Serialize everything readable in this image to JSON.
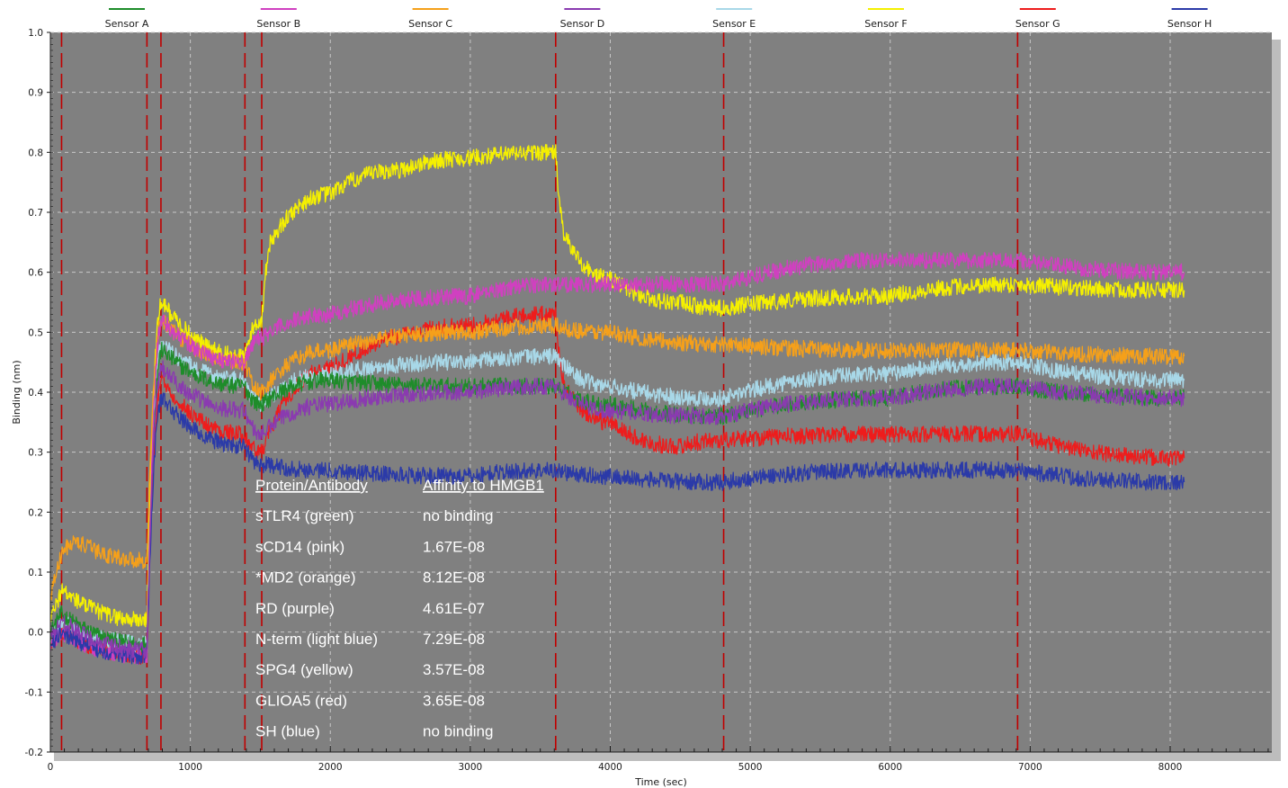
{
  "chart_data": {
    "type": "line",
    "title": "",
    "xlabel": "Time (sec)",
    "ylabel": "Binding (nm)",
    "xlim": [
      0,
      8800
    ],
    "ylim": [
      -0.2,
      1.0
    ],
    "x_ticks": [
      0,
      1000,
      2000,
      3000,
      4000,
      5000,
      6000,
      7000,
      8000
    ],
    "y_ticks": [
      -0.2,
      -0.1,
      0.0,
      0.1,
      0.2,
      0.3,
      0.4,
      0.5,
      0.6,
      0.7,
      0.8,
      0.9,
      1.0
    ],
    "grid": true,
    "legend_position": "top",
    "background": "#808080",
    "step_markers": [
      80,
      690,
      790,
      1390,
      1510,
      3610,
      4810,
      6910
    ],
    "marker_color": "#c00000",
    "series": [
      {
        "name": "Sensor A",
        "color": "#1e8c2a",
        "x": [
          0,
          80,
          690,
          800,
          1390,
          1510,
          2000,
          3000,
          3610,
          4000,
          4810,
          6000,
          6910,
          8100
        ],
        "y": [
          0.0,
          0.03,
          -0.02,
          0.47,
          0.41,
          0.38,
          0.42,
          0.41,
          0.41,
          0.38,
          0.36,
          0.39,
          0.41,
          0.39
        ]
      },
      {
        "name": "Sensor B",
        "color": "#d040c0",
        "x": [
          0,
          80,
          690,
          800,
          1390,
          1510,
          2000,
          3000,
          3610,
          4000,
          4810,
          6000,
          6910,
          8100
        ],
        "y": [
          -0.02,
          0.0,
          -0.04,
          0.52,
          0.45,
          0.49,
          0.53,
          0.56,
          0.58,
          0.58,
          0.58,
          0.62,
          0.62,
          0.6
        ]
      },
      {
        "name": "Sensor C",
        "color": "#f5a01a",
        "x": [
          0,
          80,
          200,
          690,
          800,
          1390,
          1510,
          2000,
          3000,
          3610,
          4000,
          4810,
          6000,
          6910,
          8100
        ],
        "y": [
          0.06,
          0.13,
          0.15,
          0.12,
          0.52,
          0.45,
          0.4,
          0.47,
          0.5,
          0.51,
          0.5,
          0.48,
          0.47,
          0.47,
          0.46
        ]
      },
      {
        "name": "Sensor D",
        "color": "#8a3ab0",
        "x": [
          0,
          80,
          690,
          800,
          1390,
          1510,
          2000,
          3000,
          3610,
          4000,
          4810,
          6000,
          6910,
          8100
        ],
        "y": [
          -0.01,
          0.02,
          -0.03,
          0.44,
          0.37,
          0.33,
          0.38,
          0.4,
          0.41,
          0.37,
          0.36,
          0.39,
          0.41,
          0.39
        ]
      },
      {
        "name": "Sensor E",
        "color": "#a8d8e8",
        "x": [
          0,
          80,
          690,
          800,
          1390,
          1510,
          2000,
          3000,
          3610,
          4000,
          4810,
          6000,
          6910,
          8100
        ],
        "y": [
          -0.01,
          0.02,
          -0.02,
          0.48,
          0.42,
          0.38,
          0.43,
          0.45,
          0.46,
          0.41,
          0.39,
          0.43,
          0.45,
          0.42
        ]
      },
      {
        "name": "Sensor F",
        "color": "#f5f000",
        "x": [
          0,
          80,
          690,
          800,
          1390,
          1510,
          1600,
          2000,
          2500,
          3000,
          3610,
          3700,
          4000,
          4500,
          4810,
          6000,
          6910,
          8100
        ],
        "y": [
          0.02,
          0.07,
          0.02,
          0.55,
          0.46,
          0.52,
          0.66,
          0.73,
          0.77,
          0.79,
          0.8,
          0.65,
          0.59,
          0.55,
          0.54,
          0.56,
          0.58,
          0.57
        ]
      },
      {
        "name": "Sensor G",
        "color": "#ee1c1c",
        "x": [
          0,
          80,
          690,
          800,
          1390,
          1510,
          2000,
          3000,
          3610,
          3700,
          4000,
          4500,
          4810,
          6000,
          6910,
          8100
        ],
        "y": [
          -0.02,
          0.0,
          -0.04,
          0.42,
          0.33,
          0.3,
          0.44,
          0.51,
          0.53,
          0.4,
          0.35,
          0.31,
          0.32,
          0.33,
          0.33,
          0.29
        ]
      },
      {
        "name": "Sensor H",
        "color": "#2b3aa8",
        "x": [
          0,
          80,
          690,
          800,
          1390,
          1510,
          2000,
          3000,
          3610,
          4000,
          4810,
          6000,
          6910,
          8100
        ],
        "y": [
          -0.02,
          0.0,
          -0.04,
          0.39,
          0.31,
          0.28,
          0.27,
          0.26,
          0.27,
          0.26,
          0.25,
          0.27,
          0.27,
          0.25
        ]
      }
    ],
    "annotation_table": {
      "headers": [
        "Protein/Antibody",
        "Affinity to HMGB1"
      ],
      "rows": [
        [
          "sTLR4 (green)",
          "no binding"
        ],
        [
          "sCD14 (pink)",
          "1.67E-08"
        ],
        [
          "*MD2 (orange)",
          "8.12E-08"
        ],
        [
          "RD (purple)",
          "4.61E-07"
        ],
        [
          "N-term (light blue)",
          "7.29E-08"
        ],
        [
          "SPG4 (yellow)",
          "3.57E-08"
        ],
        [
          "GLIOA5 (red)",
          "3.65E-08"
        ],
        [
          "SH (blue)",
          "no binding"
        ]
      ]
    }
  }
}
